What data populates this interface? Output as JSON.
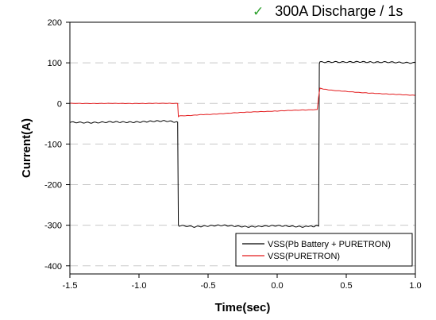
{
  "chart_data": {
    "type": "line",
    "title_mark": "✓",
    "title": "300A Discharge / 1s",
    "xlabel": "Time(sec)",
    "ylabel": "Current(A)",
    "xlim": [
      -1.5,
      1.0
    ],
    "ylim": [
      -420,
      200
    ],
    "x_ticks": [
      -1.5,
      -1.0,
      -0.5,
      0.0,
      0.5,
      1.0
    ],
    "x_tick_labels": [
      "-1.5",
      "-1.0",
      "-0.5",
      "0.0",
      "0.5",
      "1.0"
    ],
    "y_ticks": [
      200,
      100,
      0,
      -100,
      -200,
      -300,
      -400
    ],
    "y_tick_labels": [
      "200",
      "100",
      "0",
      "-100",
      "-200",
      "-300",
      "-400"
    ],
    "grid": "dashed horizontal",
    "legend_position": "bottom-right",
    "series": [
      {
        "name": "VSS(Pb Battery + PURETRON)",
        "color": "#000000",
        "x": [
          -1.5,
          -1.2,
          -1.0,
          -0.8,
          -0.72,
          -0.715,
          -0.71,
          -0.6,
          -0.4,
          -0.2,
          0.0,
          0.2,
          0.3,
          0.305,
          0.31,
          0.5,
          0.7,
          1.0
        ],
        "y": [
          -47,
          -46,
          -45,
          -44,
          -46,
          -300,
          -302,
          -303,
          -301,
          -303,
          -302,
          -303,
          -302,
          96,
          101,
          102,
          101,
          101
        ]
      },
      {
        "name": "VSS(PURETRON)",
        "color": "#e31a1c",
        "x": [
          -1.5,
          -1.2,
          -1.0,
          -0.8,
          -0.72,
          -0.715,
          -0.71,
          -0.5,
          -0.3,
          -0.1,
          0.1,
          0.29,
          0.3,
          0.31,
          0.4,
          0.6,
          0.8,
          1.0
        ],
        "y": [
          0,
          0,
          0,
          0,
          0,
          -33,
          -31,
          -27,
          -23,
          -20,
          -17,
          -15,
          16,
          37,
          32,
          27,
          23,
          20
        ]
      }
    ]
  }
}
